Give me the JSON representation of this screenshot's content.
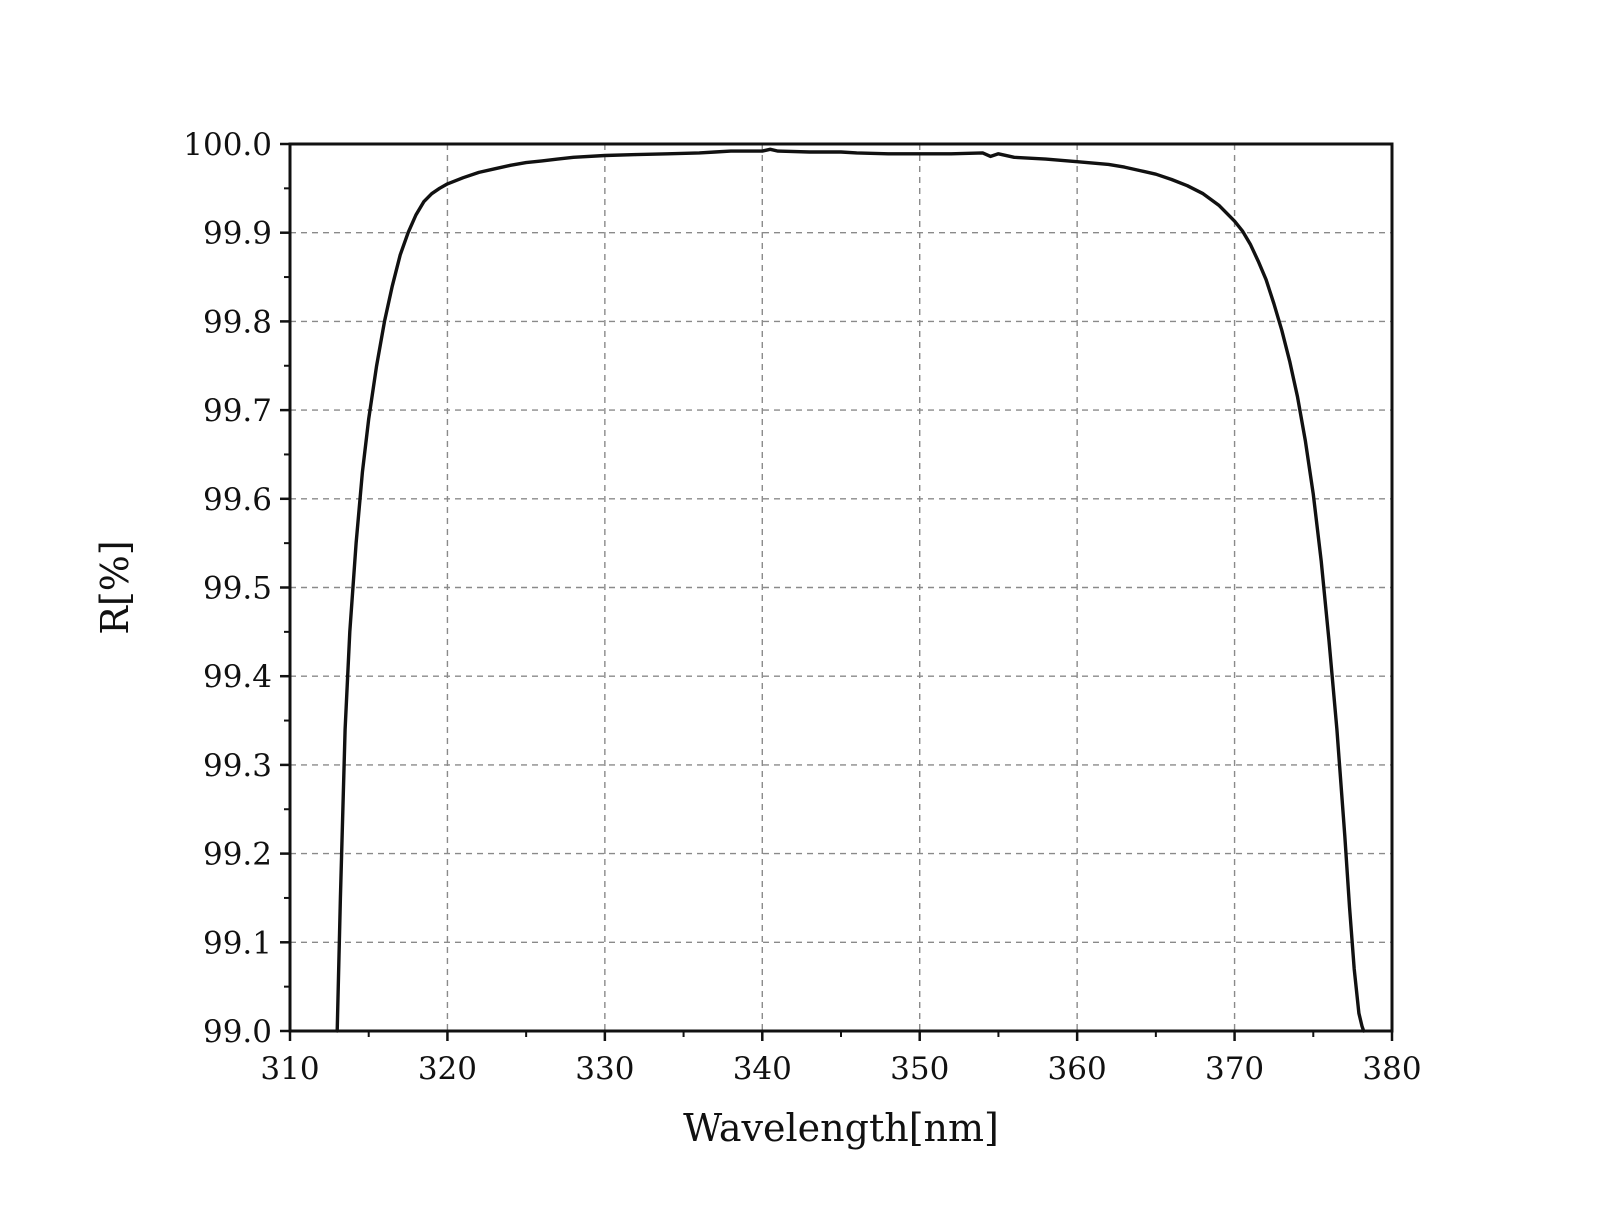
{
  "chart_data": {
    "type": "line",
    "title": "",
    "xlabel": "Wavelength[nm]",
    "ylabel": "R[%]",
    "xlim": [
      310,
      380
    ],
    "ylim": [
      99.0,
      100.0
    ],
    "grid": true,
    "legend": "none",
    "x_ticks": [
      "310",
      "320",
      "330",
      "340",
      "350",
      "360",
      "370",
      "380"
    ],
    "y_ticks": [
      "99.0",
      "99.1",
      "99.2",
      "99.3",
      "99.4",
      "99.5",
      "99.6",
      "99.7",
      "99.8",
      "99.9",
      "100.0"
    ],
    "line_color": "#111111",
    "grid_color": "#8a8a8a",
    "series": [
      {
        "x": [
          313.0,
          313.2,
          313.5,
          313.8,
          314.2,
          314.6,
          315.0,
          315.5,
          316.0,
          316.5,
          317.0,
          317.5,
          318.0,
          318.5,
          319.0,
          319.5,
          320.0,
          321.0,
          322.0,
          323.0,
          324.0,
          325.0,
          326.0,
          327.0,
          328.0,
          330.0,
          332.0,
          334.0,
          336.0,
          337.0,
          338.0,
          339.0,
          340.0,
          340.5,
          341.0,
          343.0,
          345.0,
          346.0,
          348.0,
          350.0,
          352.0,
          354.0,
          354.5,
          355.0,
          356.0,
          358.0,
          360.0,
          362.0,
          363.0,
          364.0,
          365.0,
          366.0,
          367.0,
          368.0,
          369.0,
          370.0,
          370.5,
          371.0,
          371.5,
          372.0,
          372.5,
          373.0,
          373.5,
          374.0,
          374.5,
          375.0,
          375.5,
          376.0,
          376.5,
          377.0,
          377.3,
          377.6,
          377.9,
          378.1,
          378.2
        ],
        "y": [
          99.0,
          99.15,
          99.34,
          99.45,
          99.55,
          99.63,
          99.69,
          99.75,
          99.8,
          99.84,
          99.875,
          99.9,
          99.92,
          99.935,
          99.944,
          99.95,
          99.955,
          99.962,
          99.968,
          99.972,
          99.976,
          99.979,
          99.981,
          99.983,
          99.985,
          99.987,
          99.988,
          99.989,
          99.99,
          99.991,
          99.992,
          99.992,
          99.992,
          99.994,
          99.992,
          99.991,
          99.991,
          99.99,
          99.989,
          99.989,
          99.989,
          99.99,
          99.986,
          99.989,
          99.985,
          99.983,
          99.98,
          99.977,
          99.974,
          99.97,
          99.966,
          99.96,
          99.953,
          99.944,
          99.931,
          99.913,
          99.902,
          99.887,
          99.868,
          99.847,
          99.82,
          99.79,
          99.755,
          99.715,
          99.665,
          99.605,
          99.53,
          99.44,
          99.34,
          99.22,
          99.14,
          99.07,
          99.02,
          99.005,
          99.0
        ]
      }
    ]
  }
}
